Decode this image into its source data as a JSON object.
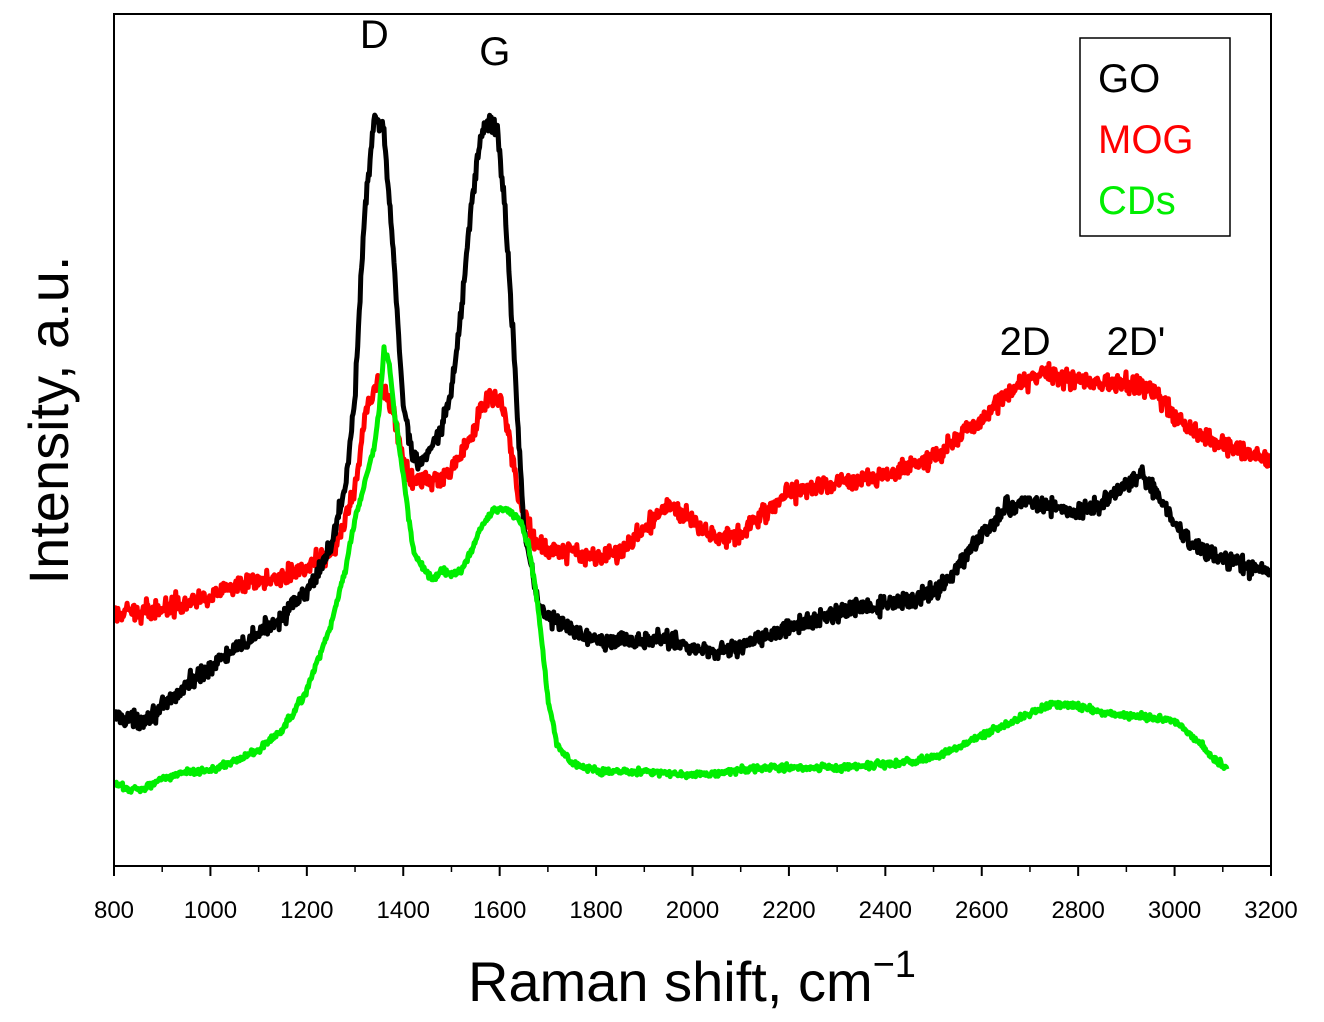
{
  "chart_data": {
    "type": "line",
    "title": "",
    "xlabel": "Raman shift, cm",
    "xlabel_superscript": "−1",
    "ylabel": "Intensity, a.u.",
    "xlim": [
      800,
      3200
    ],
    "ylim": [
      0,
      100
    ],
    "yticks_visible": false,
    "xticks": [
      800,
      1000,
      1200,
      1400,
      1600,
      1800,
      2000,
      2200,
      2400,
      2600,
      2800,
      3000,
      3200
    ],
    "grid": false,
    "legend_position": "top-right",
    "peak_labels": [
      {
        "text": "D",
        "x": 1340,
        "y": 96
      },
      {
        "text": "G",
        "x": 1590,
        "y": 94
      },
      {
        "text": "2D",
        "x": 2690,
        "y": 60
      },
      {
        "text": "2D'",
        "x": 2920,
        "y": 60
      }
    ],
    "series": [
      {
        "name": "GO",
        "color": "#000000",
        "noise": 1.0,
        "x": [
          800,
          850,
          900,
          950,
          1000,
          1050,
          1100,
          1150,
          1200,
          1250,
          1280,
          1300,
          1320,
          1340,
          1360,
          1380,
          1400,
          1420,
          1440,
          1460,
          1480,
          1500,
          1520,
          1540,
          1560,
          1580,
          1595,
          1610,
          1630,
          1650,
          1680,
          1700,
          1750,
          1800,
          1850,
          1900,
          1950,
          2000,
          2050,
          2100,
          2150,
          2200,
          2250,
          2300,
          2350,
          2400,
          2450,
          2500,
          2550,
          2600,
          2650,
          2700,
          2750,
          2800,
          2850,
          2900,
          2930,
          2960,
          3000,
          3050,
          3100,
          3150,
          3200
        ],
        "values": [
          17.7,
          17.0,
          18.5,
          21.2,
          23.5,
          25.3,
          27.3,
          29.4,
          32.1,
          37.5,
          44.6,
          55.4,
          76.8,
          87.5,
          86.3,
          71.3,
          54.2,
          48.0,
          47.5,
          48.8,
          51.4,
          55.8,
          65.0,
          76.8,
          85.7,
          87.5,
          86.3,
          78.0,
          60.0,
          40.0,
          30.6,
          29.3,
          27.7,
          26.6,
          26.6,
          26.3,
          26.8,
          25.5,
          25.2,
          25.8,
          26.9,
          27.9,
          28.8,
          29.6,
          30.3,
          30.6,
          31.2,
          32.1,
          35.0,
          38.9,
          41.9,
          42.8,
          42.2,
          41.3,
          42.5,
          45.0,
          45.8,
          43.9,
          40.2,
          37.1,
          36.0,
          35.1,
          34.5
        ]
      },
      {
        "name": "MOG",
        "color": "#ff0000",
        "noise": 1.1,
        "x": [
          800,
          900,
          1000,
          1100,
          1200,
          1260,
          1300,
          1320,
          1340,
          1350,
          1360,
          1380,
          1400,
          1420,
          1450,
          1480,
          1500,
          1540,
          1570,
          1590,
          1610,
          1640,
          1670,
          1700,
          1750,
          1800,
          1850,
          1900,
          1950,
          2000,
          2050,
          2100,
          2150,
          2200,
          2300,
          2400,
          2500,
          2550,
          2600,
          2650,
          2700,
          2750,
          2800,
          2850,
          2900,
          2950,
          3000,
          3050,
          3100,
          3150,
          3200
        ],
        "values": [
          29.4,
          30.3,
          31.8,
          33.3,
          35.0,
          37.4,
          44.0,
          52.5,
          55.8,
          56.5,
          55.9,
          53.1,
          47.2,
          45.4,
          45.0,
          45.5,
          46.5,
          50.4,
          54.5,
          55.4,
          53.7,
          43.0,
          38.3,
          37.1,
          36.9,
          36.3,
          36.8,
          39.5,
          42.4,
          40.7,
          38.5,
          39.0,
          41.6,
          43.9,
          45.0,
          45.7,
          48.0,
          50.1,
          52.5,
          55.5,
          57.3,
          57.8,
          57.0,
          56.7,
          56.7,
          56.1,
          52.7,
          50.6,
          49.5,
          48.4,
          47.8
        ]
      },
      {
        "name": "CDs",
        "color": "#00ee00",
        "noise": 0.4,
        "x": [
          800,
          830,
          860,
          900,
          950,
          1000,
          1050,
          1100,
          1150,
          1200,
          1250,
          1280,
          1300,
          1320,
          1340,
          1350,
          1360,
          1370,
          1380,
          1400,
          1420,
          1440,
          1460,
          1480,
          1500,
          1520,
          1540,
          1560,
          1580,
          1600,
          1620,
          1640,
          1660,
          1680,
          1700,
          1720,
          1750,
          1800,
          1900,
          2000,
          2050,
          2100,
          2200,
          2300,
          2400,
          2500,
          2550,
          2600,
          2650,
          2700,
          2750,
          2800,
          2850,
          2900,
          2950,
          3000,
          3050,
          3080,
          3110
        ],
        "values": [
          9.7,
          9.0,
          9.1,
          10.3,
          11.0,
          11.3,
          12.3,
          13.6,
          16.0,
          20.6,
          28.3,
          34.8,
          40.7,
          45.0,
          49.2,
          53.5,
          60.6,
          59.5,
          54.0,
          45.9,
          37.2,
          35.0,
          33.7,
          34.7,
          34.2,
          34.6,
          36.8,
          39.5,
          41.4,
          42.0,
          41.6,
          40.8,
          37.7,
          30.2,
          19.6,
          14.1,
          12.1,
          11.1,
          11.1,
          10.7,
          10.8,
          11.3,
          11.6,
          11.5,
          11.9,
          12.7,
          13.9,
          15.3,
          16.5,
          18.0,
          19.0,
          18.7,
          18.0,
          17.7,
          17.5,
          17.0,
          14.5,
          12.8,
          11.3
        ]
      }
    ]
  }
}
